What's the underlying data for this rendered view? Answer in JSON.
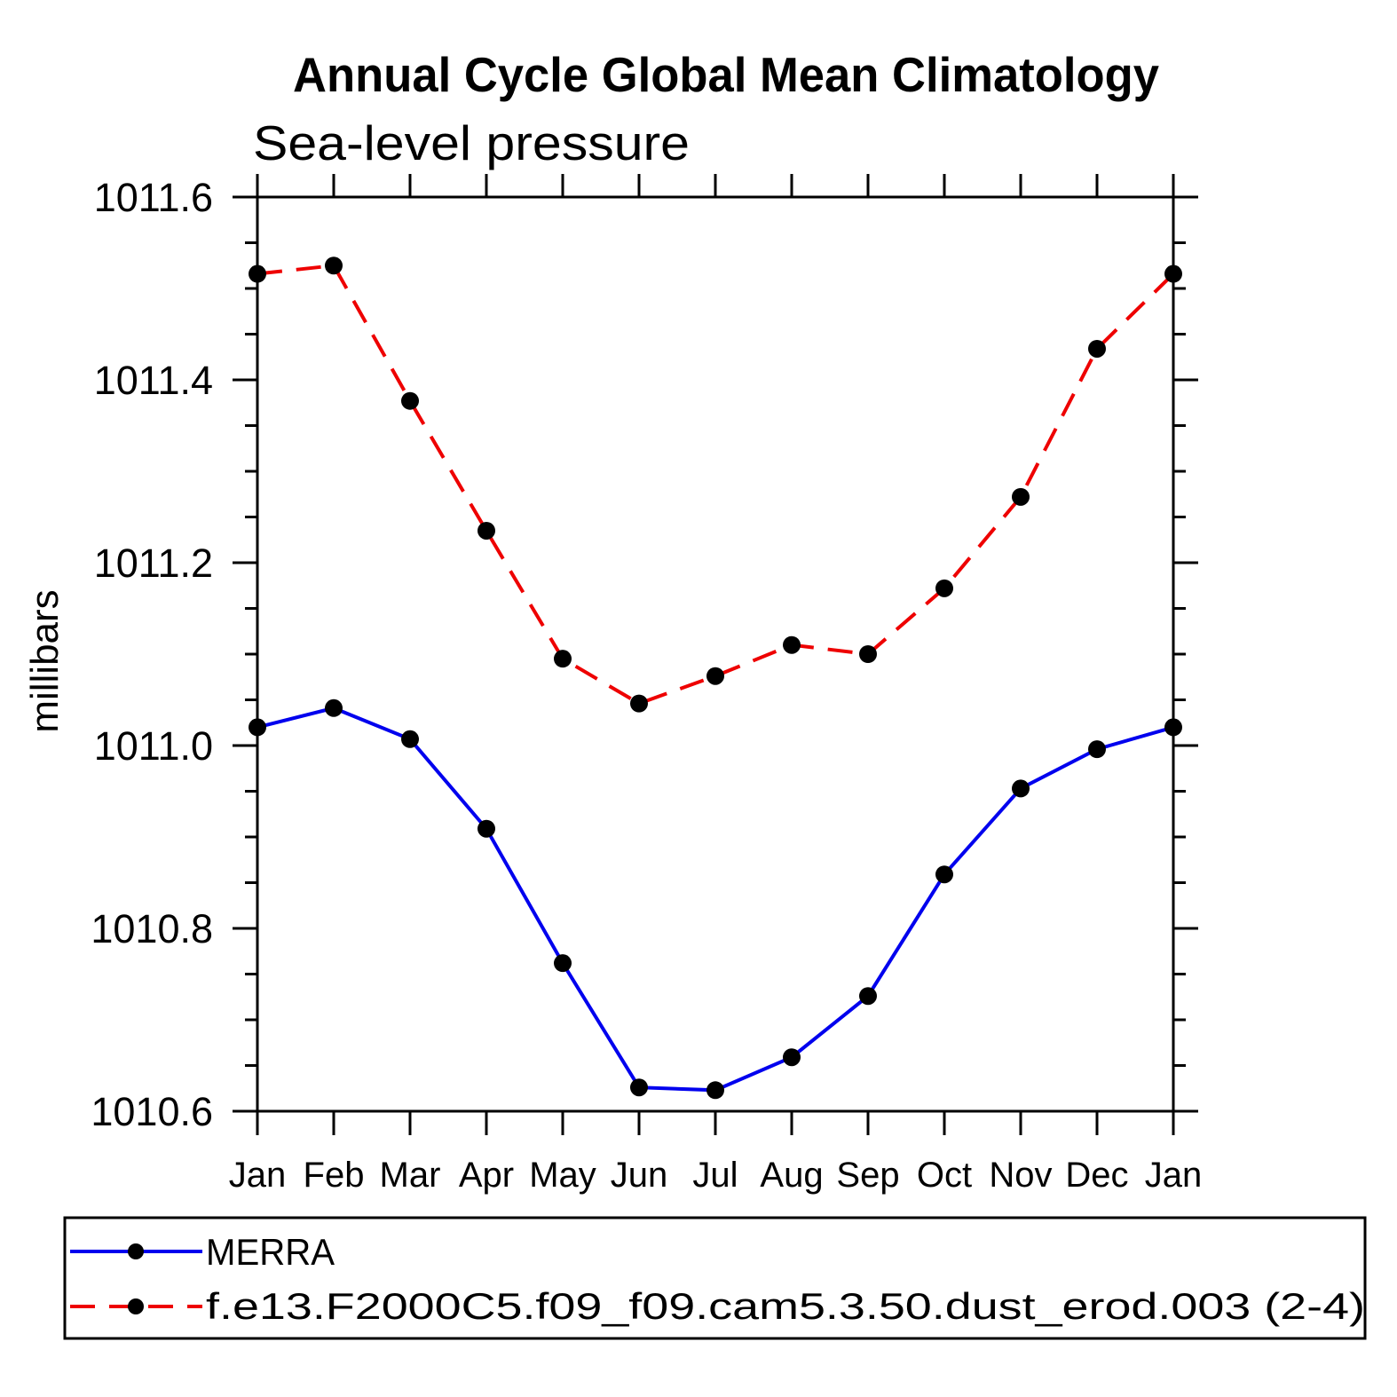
{
  "title": "Annual Cycle Global Mean Climatology",
  "subtitle": "Sea-level pressure",
  "ylabel": "millibars",
  "chart_data": {
    "type": "line",
    "title": "Annual Cycle Global Mean Climatology",
    "subtitle": "Sea-level pressure",
    "ylabel": "millibars",
    "xlabel": "",
    "categories": [
      "Jan",
      "Feb",
      "Mar",
      "Apr",
      "May",
      "Jun",
      "Jul",
      "Aug",
      "Sep",
      "Oct",
      "Nov",
      "Dec",
      "Jan"
    ],
    "series": [
      {
        "name": "MERRA",
        "color": "#0000ee",
        "line_style": "solid",
        "marker": "filled-circle",
        "marker_color": "#000000",
        "values": [
          1011.02,
          1011.041,
          1011.007,
          1010.909,
          1010.762,
          1010.626,
          1010.623,
          1010.659,
          1010.726,
          1010.859,
          1010.953,
          1010.996,
          1011.02
        ]
      },
      {
        "name": "f.e13.F2000C5.f09_f09.cam5.3.50.dust_erod.003 (2-4)",
        "color": "#ee0000",
        "line_style": "dashed",
        "marker": "filled-circle",
        "marker_color": "#000000",
        "values": [
          1011.516,
          1011.525,
          1011.377,
          1011.235,
          1011.095,
          1011.046,
          1011.076,
          1011.11,
          1011.1,
          1011.172,
          1011.272,
          1011.434,
          1011.516
        ]
      }
    ],
    "ylim": [
      1010.6,
      1011.6
    ],
    "yticks": [
      1010.6,
      1010.8,
      1011.0,
      1011.2,
      1011.4,
      1011.6
    ],
    "ytick_minor_interval": 0.05,
    "grid": false,
    "legend_position": "bottom",
    "axis_color": "#000000",
    "tick_label_color": "#000000"
  }
}
